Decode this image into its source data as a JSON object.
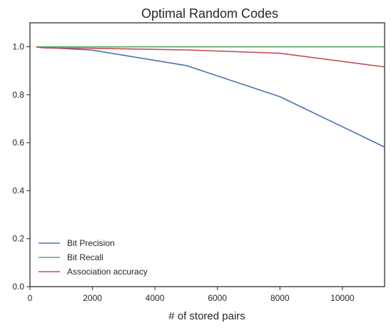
{
  "chart_data": {
    "type": "line",
    "title": "Optimal Random Codes",
    "xlabel": "# of stored pairs",
    "ylabel": "",
    "xlim": [
      0,
      11350
    ],
    "ylim": [
      0,
      1.1
    ],
    "xticks": [
      0,
      2000,
      4000,
      6000,
      8000,
      10000
    ],
    "xtick_labels": [
      "0",
      "2000",
      "4000",
      "6000",
      "8000",
      "10000"
    ],
    "yticks": [
      0.0,
      0.2,
      0.4,
      0.6,
      0.8,
      1.0
    ],
    "ytick_labels": [
      "0.0",
      "0.2",
      "0.4",
      "0.6",
      "0.8",
      "1.0"
    ],
    "grid": false,
    "legend_position": "lower-left",
    "series": [
      {
        "name": "Bit Precision",
        "color": "#4c72b0",
        "x": [
          200,
          500,
          2000,
          5000,
          8000,
          11350
        ],
        "y": [
          1.0,
          0.997,
          0.986,
          0.922,
          0.792,
          0.582
        ]
      },
      {
        "name": "Bit Recall",
        "color": "#55a868",
        "x": [
          200,
          500,
          2000,
          5000,
          8000,
          11350
        ],
        "y": [
          1.0,
          1.0,
          1.0,
          1.0,
          1.0,
          1.0
        ]
      },
      {
        "name": "Association accuracy",
        "color": "#c44e52",
        "x": [
          200,
          500,
          2000,
          5000,
          8000,
          11350
        ],
        "y": [
          0.999,
          0.995,
          0.994,
          0.987,
          0.973,
          0.916
        ]
      }
    ]
  }
}
